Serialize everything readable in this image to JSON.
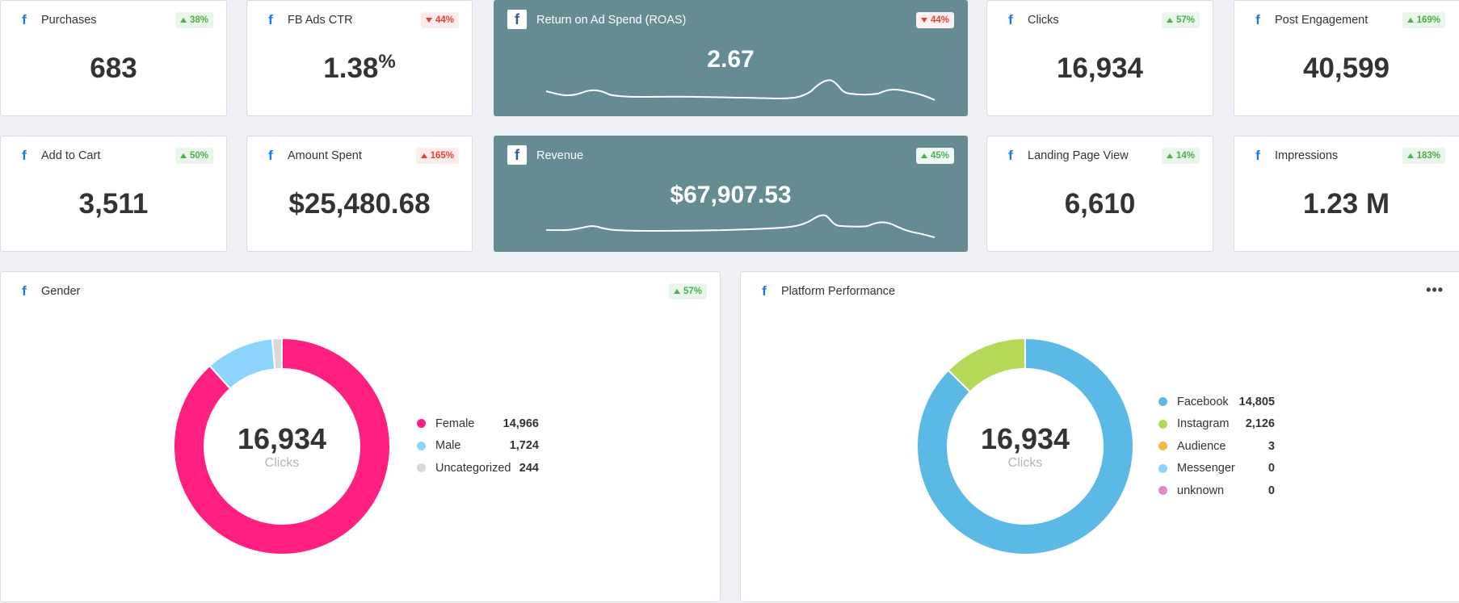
{
  "kpi_cards": [
    {
      "title": "Purchases",
      "value": "683",
      "change": "38%",
      "direction": "up"
    },
    {
      "title": "FB Ads CTR",
      "value": "1.38",
      "value_suffix": "%",
      "change": "44%",
      "direction": "down"
    },
    {
      "title": "Return on Ad Spend (ROAS)",
      "value": "2.67",
      "change": "44%",
      "direction": "down"
    },
    {
      "title": "Clicks",
      "value": "16,934",
      "change": "57%",
      "direction": "up"
    },
    {
      "title": "Post Engagement",
      "value": "40,599",
      "change": "169%",
      "direction": "up"
    },
    {
      "title": "Add to Cart",
      "value": "3,511",
      "change": "50%",
      "direction": "up"
    },
    {
      "title": "Amount Spent",
      "value": "$25,480.68",
      "change": "165%",
      "direction": "up"
    },
    {
      "title": "Revenue",
      "value": "$67,907.53",
      "change": "45%",
      "direction": "up"
    },
    {
      "title": "Landing Page View",
      "value": "6,610",
      "change": "14%",
      "direction": "up"
    },
    {
      "title": "Impressions",
      "value": "1.23 M",
      "change": "183%",
      "direction": "up"
    }
  ],
  "gender": {
    "title": "Gender",
    "change": "57%",
    "direction": "up",
    "total": "16,934",
    "total_label": "Clicks",
    "legend": [
      {
        "label": "Female",
        "value": "14,966",
        "color": "#ff1f80"
      },
      {
        "label": "Male",
        "value": "1,724",
        "color": "#8dd4fc"
      },
      {
        "label": "Uncategorized",
        "value": "244",
        "color": "#d9d9d9"
      }
    ]
  },
  "platform": {
    "title": "Platform Performance",
    "total": "16,934",
    "total_label": "Clicks",
    "legend": [
      {
        "label": "Facebook",
        "value": "14,805",
        "color": "#5bb9e6"
      },
      {
        "label": "Instagram",
        "value": "2,126",
        "color": "#b3d956"
      },
      {
        "label": "Audience",
        "value": "3",
        "color": "#f5b94a"
      },
      {
        "label": "Messenger",
        "value": "0",
        "color": "#8dd4fc"
      },
      {
        "label": "unknown",
        "value": "0",
        "color": "#d98cc4"
      }
    ]
  },
  "chart_data": [
    {
      "type": "pie",
      "categories": [
        "Female",
        "Male",
        "Uncategorized"
      ],
      "values": [
        14966,
        1724,
        244
      ]
    },
    {
      "type": "pie",
      "categories": [
        "Facebook",
        "Instagram",
        "Audience",
        "Messenger",
        "unknown"
      ],
      "values": [
        14805,
        2126,
        3,
        0,
        0
      ]
    }
  ],
  "icons": {
    "facebook": "f",
    "more_menu": "•••"
  }
}
